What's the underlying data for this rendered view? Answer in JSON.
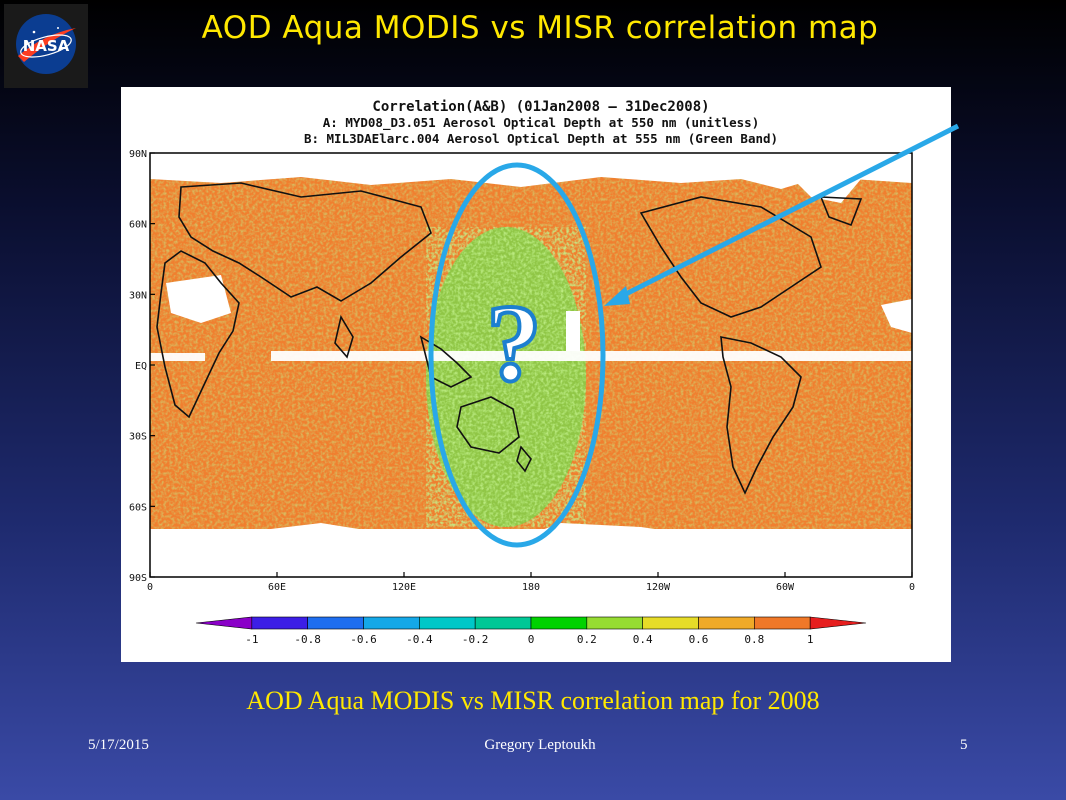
{
  "slide": {
    "title": "AOD Aqua MODIS vs MISR correlation map",
    "caption": "AOD Aqua MODIS vs MISR correlation map for 2008",
    "footer_date": "5/17/2015",
    "footer_author": "Gregory Leptoukh",
    "page_number": "5",
    "logo_text": "NASA"
  },
  "map": {
    "header_line1": "Correlation(A&B) (01Jan2008 – 31Dec2008)",
    "header_line2": "A: MYD08_D3.051 Aerosol Optical Depth at 550 nm (unitless)",
    "header_line3": "B: MIL3DAElarc.004 Aerosol Optical Depth at 555 nm (Green Band)",
    "lat_labels": [
      "90N",
      "60N",
      "30N",
      "EQ",
      "30S",
      "60S",
      "90S"
    ],
    "lon_labels": [
      "0",
      "60E",
      "120E",
      "180",
      "120W",
      "60W",
      "0"
    ],
    "colorbar_labels": [
      "-1",
      "-0.8",
      "-0.6",
      "-0.4",
      "-0.2",
      "0",
      "0.2",
      "0.4",
      "0.6",
      "0.8",
      "1"
    ],
    "colorbar_colors": [
      "#8a00c8",
      "#3c1ee6",
      "#1e6ef0",
      "#14a8e8",
      "#00c8c8",
      "#00c896",
      "#00d200",
      "#96dc32",
      "#e6dc28",
      "#f0aa28",
      "#f07828",
      "#e61e1e"
    ],
    "annotation_symbol": "?"
  },
  "colors": {
    "title": "#ffe800",
    "ocean_high_corr": "#f07f2f",
    "low_corr": "#7fd24a",
    "highlight": "#29a8e8"
  }
}
